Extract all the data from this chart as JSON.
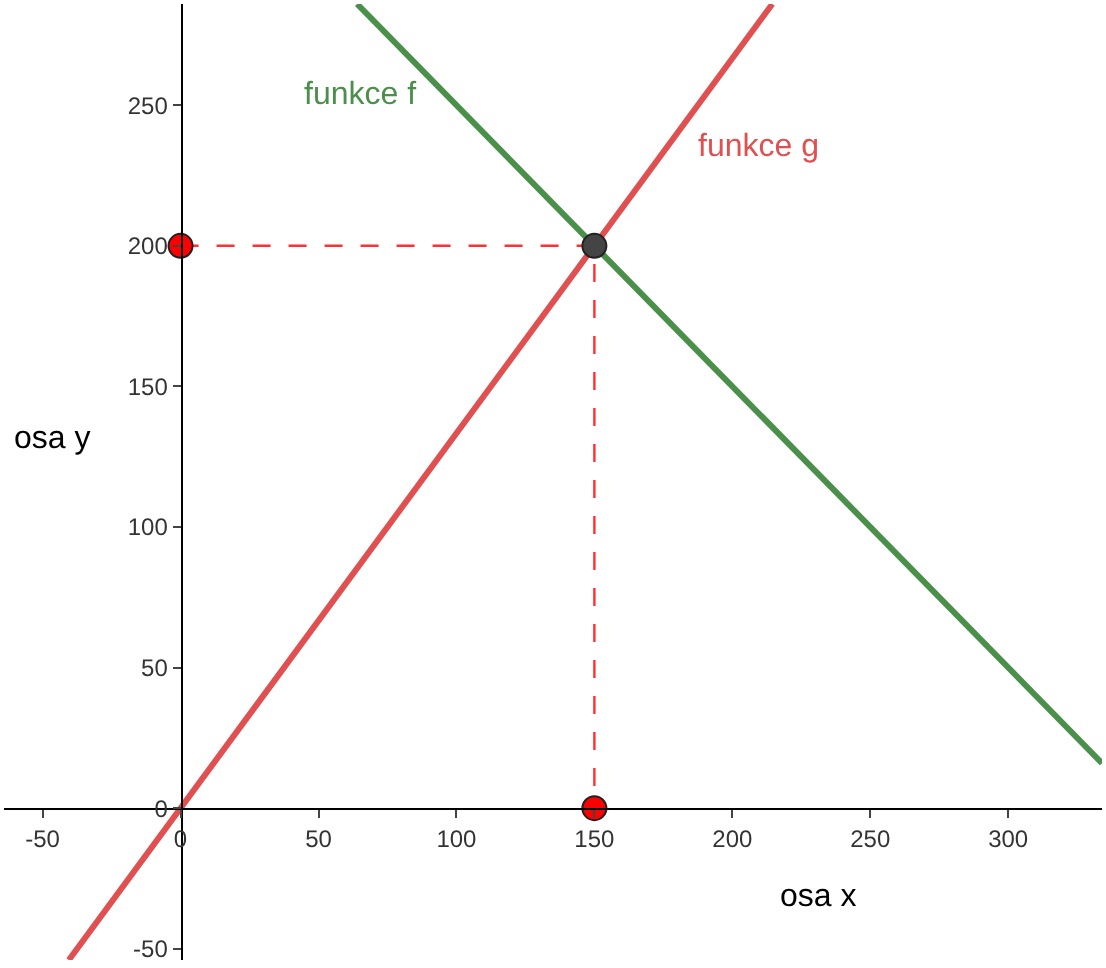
{
  "chart_data": {
    "type": "line",
    "xlabel": "osa x",
    "ylabel": "osa y",
    "xlim": [
      -64,
      334
    ],
    "ylim": [
      -54,
      286
    ],
    "xticks": [
      -50,
      0,
      50,
      100,
      150,
      200,
      250,
      300
    ],
    "yticks": [
      -50,
      0,
      50,
      100,
      150,
      200,
      250
    ],
    "series": [
      {
        "name": "funkce f",
        "color": "#4a8f4a",
        "x": [
          64,
          334
        ],
        "values": [
          286,
          16
        ],
        "line_style": "solid",
        "marker": "none"
      },
      {
        "name": "funkce g",
        "color": "#e05050",
        "x": [
          -40.5,
          214.5
        ],
        "values": [
          -54,
          286
        ],
        "line_style": "solid",
        "marker": "none"
      },
      {
        "color": "#ff3030",
        "x": [
          0,
          150,
          150
        ],
        "values": [
          200,
          200,
          0
        ],
        "line_style": "dashed",
        "marker": "none"
      },
      {
        "type": "scatter",
        "color": "#ff0000",
        "x": [
          0,
          150
        ],
        "values": [
          200,
          0
        ],
        "marker": "circle"
      },
      {
        "type": "scatter",
        "color": "#444444",
        "x": [
          150
        ],
        "values": [
          200
        ],
        "marker": "circle"
      }
    ]
  }
}
